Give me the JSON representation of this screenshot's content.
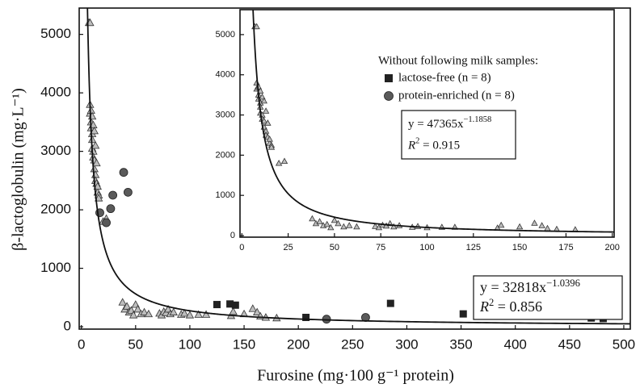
{
  "chart_data": [
    {
      "type": "scatter",
      "x_label": "Furosine (mg·100 g⁻¹ protein)",
      "y_label": "β-lactoglobulin (mg·L⁻¹)",
      "xlim": [
        -2,
        506
      ],
      "ylim": [
        -40,
        5450
      ],
      "xticks": [
        0,
        50,
        100,
        150,
        200,
        250,
        300,
        350,
        400,
        450,
        500
      ],
      "yticks": [
        0,
        1000,
        2000,
        3000,
        4000,
        5000
      ],
      "legend_title": "Without following milk samples:",
      "series": [
        {
          "marker": "triangle",
          "color": "#bdbdbd",
          "x": [
            7,
            8,
            8,
            8,
            9,
            9,
            9,
            10,
            10,
            10,
            10,
            11,
            11,
            11,
            12,
            12,
            12,
            13,
            13,
            13,
            14,
            14,
            15,
            15,
            16,
            16,
            20,
            23,
            38,
            40,
            42,
            44,
            46,
            48,
            50,
            52,
            55,
            58,
            62,
            72,
            74,
            76,
            78,
            80,
            82,
            85,
            92,
            95,
            100,
            108,
            115,
            138,
            140,
            150,
            158,
            162,
            165,
            170,
            180
          ],
          "values": [
            5200,
            5200,
            3800,
            3650,
            3700,
            3500,
            3400,
            3600,
            3300,
            3200,
            3050,
            3450,
            3000,
            2900,
            2850,
            3350,
            2700,
            2600,
            3100,
            2500,
            2450,
            2800,
            2300,
            2400,
            2250,
            2200,
            1800,
            1850,
            420,
            300,
            350,
            250,
            280,
            200,
            380,
            300,
            220,
            250,
            220,
            230,
            200,
            260,
            240,
            300,
            220,
            250,
            210,
            230,
            200,
            210,
            210,
            190,
            260,
            220,
            310,
            250,
            180,
            160,
            150
          ]
        },
        {
          "name": "lactose-free (n = 8)",
          "marker": "square",
          "color": "#222222",
          "x": [
            125,
            137,
            142,
            207,
            285,
            352,
            470,
            481
          ],
          "values": [
            380,
            390,
            370,
            160,
            400,
            220,
            150,
            140
          ]
        },
        {
          "name": "protein-enriched (n = 8)",
          "marker": "circle",
          "color": "#5a5a5a",
          "x": [
            17,
            23,
            27,
            29,
            39,
            43,
            226,
            262
          ],
          "values": [
            1950,
            1780,
            2020,
            2250,
            2640,
            2300,
            130,
            160
          ]
        }
      ],
      "fit": {
        "a": 32818,
        "b": -1.0396,
        "label": "y = 32818x",
        "exponent": "−1.0396",
        "r2_symbol": "R",
        "r2_power": "2",
        "r2_value": " = 0.856"
      }
    },
    {
      "type": "scatter",
      "xlim": [
        -1,
        201
      ],
      "ylim": [
        -40,
        5620
      ],
      "xticks": [
        0,
        25,
        50,
        75,
        100,
        125,
        150,
        175,
        200
      ],
      "yticks": [
        0,
        1000,
        2000,
        3000,
        4000,
        5000
      ],
      "series": [
        {
          "marker": "triangle",
          "color": "#bdbdbd",
          "x": [
            7,
            8,
            8,
            8,
            9,
            9,
            9,
            10,
            10,
            10,
            10,
            11,
            11,
            11,
            12,
            12,
            12,
            13,
            13,
            13,
            14,
            14,
            15,
            15,
            16,
            16,
            20,
            23,
            38,
            40,
            42,
            44,
            46,
            48,
            50,
            52,
            55,
            58,
            62,
            72,
            74,
            76,
            78,
            80,
            82,
            85,
            92,
            95,
            100,
            108,
            115,
            138,
            140,
            150,
            158,
            162,
            165,
            170,
            180
          ],
          "values": [
            5200,
            5200,
            3800,
            3650,
            3700,
            3500,
            3400,
            3600,
            3300,
            3200,
            3050,
            3450,
            3000,
            2900,
            2850,
            3350,
            2700,
            2600,
            3100,
            2500,
            2450,
            2800,
            2300,
            2400,
            2250,
            2200,
            1800,
            1850,
            420,
            300,
            350,
            250,
            280,
            200,
            380,
            300,
            220,
            250,
            220,
            230,
            200,
            260,
            240,
            300,
            220,
            250,
            210,
            230,
            200,
            210,
            210,
            190,
            260,
            220,
            310,
            250,
            180,
            160,
            150
          ]
        }
      ],
      "fit": {
        "a": 47365,
        "b": -1.1858,
        "label": "y = 47365x",
        "exponent": "−1.1858",
        "r2_symbol": "R",
        "r2_power": "2",
        "r2_value": " = 0.915"
      }
    }
  ]
}
